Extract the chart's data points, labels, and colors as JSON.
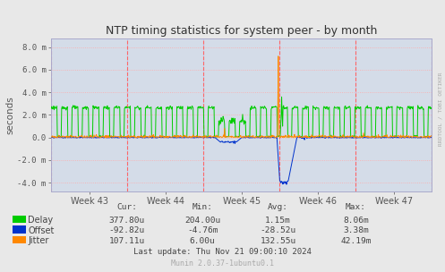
{
  "title": "NTP timing statistics for system peer - by month",
  "ylabel": "seconds",
  "bg_color": "#e8e8e8",
  "plot_bg_color": "#d4dce8",
  "grid_color_h": "#ff9999",
  "grid_color_v": "#ccccff",
  "x_tick_labels": [
    "Week 43",
    "Week 44",
    "Week 45",
    "Week 46",
    "Week 47"
  ],
  "y_tick_labels": [
    "-4.0 m",
    "-2.0 m",
    "0.0",
    "2.0 m",
    "4.0 m",
    "6.0 m",
    "8.0 m"
  ],
  "y_tick_values": [
    -0.004,
    -0.002,
    0.0,
    0.002,
    0.004,
    0.006,
    0.008
  ],
  "ylim": [
    -0.0048,
    0.0088
  ],
  "delay_color": "#00cc00",
  "offset_color": "#0033cc",
  "jitter_color": "#ff8800",
  "stats_delay": [
    "377.80u",
    "204.00u",
    "1.15m",
    "8.06m"
  ],
  "stats_offset": [
    "-92.82u",
    "-4.76m",
    "-28.52u",
    "3.38m"
  ],
  "stats_jitter": [
    "107.11u",
    "6.00u",
    "132.55u",
    "42.19m"
  ],
  "last_update": "Last update: Thu Nov 21 09:00:10 2024",
  "munin_text": "Munin 2.0.37-1ubuntu0.1",
  "watermark": "RRDTOOL / TOBI OETIKER"
}
